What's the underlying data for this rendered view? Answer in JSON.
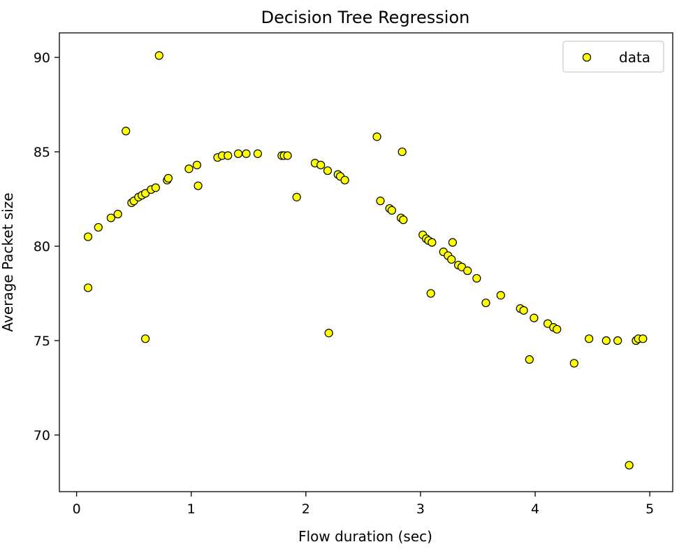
{
  "chart_data": {
    "type": "scatter",
    "title": "Decision Tree Regression",
    "xlabel": "Flow duration (sec)",
    "ylabel": "Average Packet size",
    "xlim": [
      -0.15,
      5.2
    ],
    "ylim": [
      67.0,
      91.3
    ],
    "xticks": [
      0,
      1,
      2,
      3,
      4,
      5
    ],
    "yticks": [
      70,
      75,
      80,
      85,
      90
    ],
    "grid": false,
    "legend_position": "top-right",
    "marker_fill": "#ffff00",
    "marker_edge": "#000000",
    "series": [
      {
        "name": "data",
        "points": [
          [
            0.1,
            80.5
          ],
          [
            0.1,
            77.8
          ],
          [
            0.19,
            81.0
          ],
          [
            0.3,
            81.5
          ],
          [
            0.36,
            81.7
          ],
          [
            0.43,
            86.1
          ],
          [
            0.48,
            82.3
          ],
          [
            0.5,
            82.4
          ],
          [
            0.54,
            82.6
          ],
          [
            0.57,
            82.7
          ],
          [
            0.6,
            75.1
          ],
          [
            0.6,
            82.8
          ],
          [
            0.65,
            83.0
          ],
          [
            0.69,
            83.1
          ],
          [
            0.72,
            90.1
          ],
          [
            0.79,
            83.5
          ],
          [
            0.8,
            83.6
          ],
          [
            0.98,
            84.1
          ],
          [
            1.05,
            84.3
          ],
          [
            1.06,
            83.2
          ],
          [
            1.23,
            84.7
          ],
          [
            1.27,
            84.8
          ],
          [
            1.32,
            84.8
          ],
          [
            1.41,
            84.9
          ],
          [
            1.48,
            84.9
          ],
          [
            1.58,
            84.9
          ],
          [
            1.79,
            84.8
          ],
          [
            1.81,
            84.8
          ],
          [
            1.84,
            84.8
          ],
          [
            1.92,
            82.6
          ],
          [
            2.08,
            84.4
          ],
          [
            2.13,
            84.3
          ],
          [
            2.19,
            84.0
          ],
          [
            2.2,
            75.4
          ],
          [
            2.28,
            83.8
          ],
          [
            2.3,
            83.7
          ],
          [
            2.34,
            83.5
          ],
          [
            2.62,
            85.8
          ],
          [
            2.65,
            82.4
          ],
          [
            2.73,
            82.0
          ],
          [
            2.75,
            81.9
          ],
          [
            2.83,
            81.5
          ],
          [
            2.85,
            81.4
          ],
          [
            2.84,
            85.0
          ],
          [
            3.02,
            80.6
          ],
          [
            3.05,
            80.4
          ],
          [
            3.07,
            80.3
          ],
          [
            3.1,
            80.2
          ],
          [
            3.09,
            77.5
          ],
          [
            3.2,
            79.7
          ],
          [
            3.24,
            79.5
          ],
          [
            3.27,
            79.3
          ],
          [
            3.28,
            80.2
          ],
          [
            3.33,
            79.0
          ],
          [
            3.36,
            78.9
          ],
          [
            3.41,
            78.7
          ],
          [
            3.49,
            78.3
          ],
          [
            3.57,
            77.0
          ],
          [
            3.7,
            77.4
          ],
          [
            3.87,
            76.7
          ],
          [
            3.9,
            76.6
          ],
          [
            3.95,
            74.0
          ],
          [
            3.99,
            76.2
          ],
          [
            4.11,
            75.9
          ],
          [
            4.16,
            75.7
          ],
          [
            4.19,
            75.6
          ],
          [
            4.34,
            73.8
          ],
          [
            4.47,
            75.1
          ],
          [
            4.62,
            75.0
          ],
          [
            4.72,
            75.0
          ],
          [
            4.82,
            68.4
          ],
          [
            4.88,
            75.0
          ],
          [
            4.9,
            75.1
          ],
          [
            4.94,
            75.1
          ]
        ]
      }
    ]
  }
}
